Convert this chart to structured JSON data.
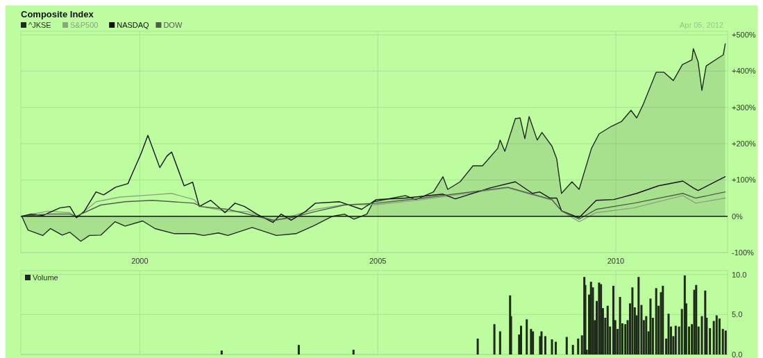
{
  "chart_data": [
    {
      "type": "line",
      "title": "Composite Index",
      "annotations": [
        "Apr 05, 2012"
      ],
      "legend": "top left",
      "grid": true,
      "xlim": [
        1997.5,
        2012.35
      ],
      "xticks": [
        2000,
        2005,
        2010
      ],
      "ylim": [
        -100,
        510
      ],
      "yticks": [
        {
          "value": -100,
          "label": "-100%"
        },
        {
          "value": 0,
          "label": "0%"
        },
        {
          "value": 100,
          "label": "+100%"
        },
        {
          "value": 200,
          "label": "+200%"
        },
        {
          "value": 300,
          "label": "+300%"
        },
        {
          "value": 400,
          "label": "+400%"
        },
        {
          "value": 500,
          "label": "+500%"
        }
      ],
      "ref_lines": [
        {
          "axis": "y",
          "value": 0,
          "color": "#111111"
        }
      ],
      "series": [
        {
          "name": "^JKSE",
          "type": "area",
          "color": "#1e2a1a",
          "x": [
            1997.52,
            1997.65,
            1997.96,
            1998.12,
            1998.37,
            1998.53,
            1998.76,
            1998.94,
            1999.18,
            1999.48,
            1999.69,
            2000.06,
            2000.32,
            2000.73,
            2001.14,
            2001.34,
            2001.65,
            2001.85,
            2002.36,
            2002.87,
            2003.28,
            2003.64,
            2004.05,
            2004.3,
            2004.5,
            2004.77,
            2004.91,
            2005.58,
            2005.8,
            2006.17,
            2006.37,
            2006.47,
            2006.73,
            2007.0,
            2007.2,
            2007.52,
            2007.57,
            2007.67,
            2007.89,
            2007.99,
            2008.09,
            2008.18,
            2008.35,
            2008.45,
            2008.66,
            2008.76,
            2008.86,
            2009.08,
            2009.23,
            2009.49,
            2009.65,
            2009.91,
            2010.12,
            2010.32,
            2010.44,
            2010.58,
            2010.85,
            2011.01,
            2011.21,
            2011.4,
            2011.6,
            2011.63,
            2011.73,
            2011.81,
            2011.9,
            2012.14,
            2012.26,
            2012.3
          ],
          "values": [
            0,
            -38,
            -53,
            -34,
            -52,
            -44,
            -69,
            -53,
            -52,
            -15,
            -27,
            -13,
            -34,
            -48,
            -48,
            -53,
            -46,
            -53,
            -31,
            -53,
            -48,
            -27,
            0,
            6,
            -8,
            6,
            40,
            57,
            46,
            67,
            109,
            74,
            95,
            139,
            139,
            187,
            210,
            179,
            269,
            271,
            214,
            275,
            210,
            231,
            193,
            158,
            63,
            95,
            74,
            187,
            227,
            248,
            261,
            292,
            271,
            309,
            397,
            397,
            374,
            418,
            431,
            462,
            426,
            347,
            414,
            435,
            445,
            475
          ]
        },
        {
          "name": "S&P500",
          "color": "#8aa582",
          "x": [
            1997.52,
            1998.06,
            1998.53,
            1998.67,
            1999.08,
            1999.59,
            2000.26,
            2000.67,
            2001.14,
            2001.28,
            2001.85,
            2002.26,
            2002.81,
            2003.18,
            2003.69,
            2004.3,
            2004.97,
            2005.95,
            2007.73,
            2008.66,
            2008.86,
            2009.23,
            2009.59,
            2010.38,
            2011.41,
            2011.68,
            2012.3
          ],
          "values": [
            0,
            14,
            10,
            -4,
            40,
            53,
            59,
            63,
            46,
            27,
            13,
            13,
            -13,
            0,
            19,
            32,
            32,
            46,
            78,
            44,
            15,
            -15,
            10,
            23,
            57,
            36,
            50
          ]
        },
        {
          "name": "NASDAQ",
          "color": "#111111",
          "x": [
            1997.52,
            1997.71,
            1997.96,
            1998.32,
            1998.53,
            1998.67,
            1998.83,
            1999.08,
            1999.24,
            1999.49,
            1999.75,
            2000.03,
            2000.17,
            2000.42,
            2000.57,
            2000.67,
            2000.93,
            2001.11,
            2001.25,
            2001.49,
            2001.79,
            2002.0,
            2002.2,
            2002.46,
            2002.8,
            2002.97,
            2003.18,
            2003.48,
            2003.69,
            2004.2,
            2004.66,
            2004.97,
            2005.58,
            2006.37,
            2006.63,
            2007.36,
            2007.89,
            2008.25,
            2008.4,
            2008.62,
            2008.76,
            2008.86,
            2009.23,
            2009.59,
            2009.96,
            2010.44,
            2010.9,
            2011.41,
            2011.63,
            2011.73,
            2012.3
          ],
          "values": [
            0,
            6,
            2,
            23,
            27,
            -4,
            13,
            67,
            59,
            80,
            90,
            174,
            223,
            134,
            166,
            177,
            84,
            94,
            27,
            44,
            10,
            36,
            27,
            6,
            -17,
            6,
            -11,
            13,
            36,
            40,
            19,
            46,
            50,
            61,
            48,
            78,
            95,
            63,
            67,
            50,
            50,
            15,
            -4,
            44,
            46,
            63,
            84,
            97,
            78,
            71,
            109
          ]
        },
        {
          "name": "DOW",
          "color": "#4f6049",
          "x": [
            1997.52,
            1998.06,
            1998.53,
            1998.67,
            1999.18,
            1999.69,
            2000.26,
            2001.14,
            2001.28,
            2001.85,
            2002.81,
            2003.18,
            2003.69,
            2004.3,
            2004.97,
            2005.95,
            2007.73,
            2008.66,
            2008.86,
            2009.23,
            2009.59,
            2010.38,
            2011.41,
            2011.68,
            2012.3
          ],
          "values": [
            0,
            6,
            6,
            0,
            31,
            40,
            44,
            36,
            27,
            19,
            -11,
            -4,
            13,
            31,
            36,
            50,
            80,
            46,
            15,
            -8,
            19,
            36,
            63,
            50,
            67
          ]
        }
      ]
    },
    {
      "type": "bar",
      "legend": "top left",
      "grid": true,
      "tick_labels": "y",
      "xlim": [
        1997.5,
        2012.35
      ],
      "xticks": [
        2000,
        2005,
        2010
      ],
      "ylim": [
        0,
        10.5
      ],
      "yticks": [
        {
          "value": 0,
          "label": "0.0"
        },
        {
          "value": 5,
          "label": "5.0"
        },
        {
          "value": 10,
          "label": "10.0"
        }
      ],
      "series": [
        {
          "name": "Volume",
          "color": "#1e2a1a",
          "x": [
            2001.72,
            2003.34,
            2004.49,
            2007.1,
            2007.45,
            2007.57,
            2007.78,
            2007.8,
            2007.97,
            2008.01,
            2008.13,
            2008.22,
            2008.26,
            2008.41,
            2008.44,
            2008.52,
            2008.66,
            2008.74,
            2008.97,
            2009.1,
            2009.21,
            2009.29,
            2009.34,
            2009.36,
            2009.39,
            2009.44,
            2009.48,
            2009.52,
            2009.56,
            2009.6,
            2009.65,
            2009.69,
            2009.73,
            2009.78,
            2009.83,
            2009.88,
            2009.95,
            2009.99,
            2010.04,
            2010.09,
            2010.14,
            2010.2,
            2010.25,
            2010.3,
            2010.35,
            2010.4,
            2010.44,
            2010.48,
            2010.54,
            2010.59,
            2010.64,
            2010.69,
            2010.73,
            2010.78,
            2010.85,
            2010.9,
            2010.95,
            2010.99,
            2011.06,
            2011.11,
            2011.16,
            2011.21,
            2011.26,
            2011.33,
            2011.39,
            2011.45,
            2011.48,
            2011.54,
            2011.6,
            2011.65,
            2011.69,
            2011.74,
            2011.81,
            2011.88,
            2011.91,
            2011.98,
            2012.06,
            2012.12,
            2012.18,
            2012.25,
            2012.31
          ],
          "values": [
            0.5,
            1.2,
            0.6,
            2.0,
            3.8,
            2.9,
            7.4,
            4.8,
            2.5,
            3.6,
            4.4,
            3.2,
            2.9,
            2.3,
            2.9,
            2.3,
            1.9,
            1.6,
            2.2,
            1.2,
            2.0,
            2.4,
            9.7,
            8.7,
            0.6,
            7.5,
            9.1,
            8.4,
            4.3,
            6.7,
            9.0,
            8.8,
            5.8,
            4.6,
            6.1,
            3.5,
            8.6,
            4.3,
            3.2,
            7.2,
            3.9,
            3.8,
            4.3,
            6.4,
            8.4,
            5.9,
            4.9,
            9.7,
            6.2,
            4.3,
            4.8,
            2.9,
            7.0,
            4.6,
            8.3,
            6.1,
            7.8,
            8.6,
            2.0,
            5.1,
            3.5,
            2.3,
            3.6,
            3.5,
            5.7,
            9.9,
            6.4,
            3.5,
            3.8,
            8.1,
            8.7,
            3.5,
            4.8,
            8.0,
            4.6,
            3.3,
            4.2,
            4.9,
            4.5,
            3.2,
            3.0
          ]
        }
      ]
    }
  ]
}
